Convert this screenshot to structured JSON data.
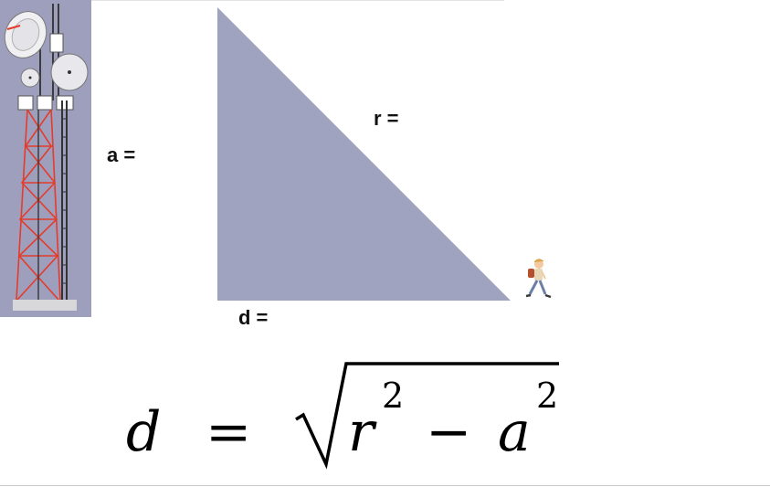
{
  "labels": {
    "a": "a =",
    "r": "r =",
    "d": "d ="
  },
  "formula": {
    "lhs": "d",
    "equals": "=",
    "term1": "r",
    "exp1": "2",
    "minus": "−",
    "term2": "a",
    "exp2": "2"
  },
  "colors": {
    "triangle_fill": "#a0a3c0",
    "tower_panel": "#9d9fbd",
    "tower_lattice": "#e53b2b",
    "background": "#ffffff"
  },
  "icons": {
    "tower": "cell-tower-icon",
    "walker": "walking-person-icon"
  }
}
